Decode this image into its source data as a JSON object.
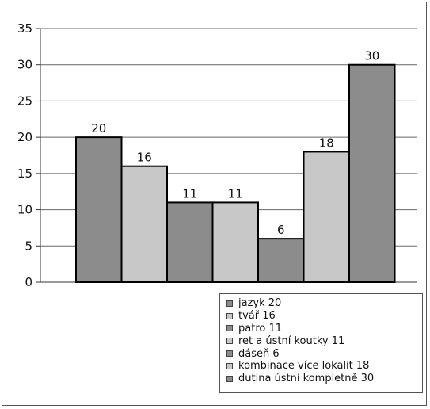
{
  "chart_data": {
    "type": "bar",
    "categories": [
      "jazyk 20",
      "tvář 16",
      "patro 11",
      "ret a ústní koutky 11",
      "dáseň 6",
      "kombinace více lokalit 18",
      "dutina ústní kompletně 30"
    ],
    "values": [
      20,
      16,
      11,
      11,
      6,
      18,
      30
    ],
    "data_labels": [
      "20",
      "16",
      "11",
      "11",
      "6",
      "18",
      "30"
    ],
    "colors": [
      "#8c8c8c",
      "#c8c8c8",
      "#8c8c8c",
      "#c8c8c8",
      "#8c8c8c",
      "#c8c8c8",
      "#8c8c8c"
    ],
    "y_ticks": [
      "0",
      "5",
      "10",
      "15",
      "20",
      "25",
      "30",
      "35"
    ],
    "ylim": [
      0,
      35
    ],
    "grid": true,
    "legend_position": "bottom-right",
    "title": "",
    "xlabel": "",
    "ylabel": ""
  }
}
